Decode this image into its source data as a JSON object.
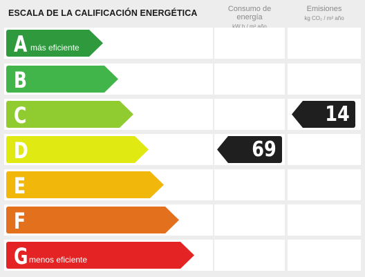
{
  "title": "ESCALA DE LA CALIFICACIÓN ENERGÉTICA",
  "columns": {
    "consumo": {
      "label": "Consumo de energía",
      "unit": "kW h / m² año"
    },
    "emisiones": {
      "label": "Emisiones",
      "unit": "kg CO₂ / m² año"
    }
  },
  "ratings": [
    {
      "letter": "A",
      "label": "más eficiente",
      "color": "#2e9a3d"
    },
    {
      "letter": "B",
      "label": "",
      "color": "#41b54a"
    },
    {
      "letter": "C",
      "label": "",
      "color": "#90cb30"
    },
    {
      "letter": "D",
      "label": "",
      "color": "#e0ea12"
    },
    {
      "letter": "E",
      "label": "",
      "color": "#f1b70a"
    },
    {
      "letter": "F",
      "label": "",
      "color": "#e3701c"
    },
    {
      "letter": "G",
      "label": "menos eficiente",
      "color": "#e42324"
    }
  ],
  "consumo_value": {
    "rating": "D",
    "value": "69"
  },
  "emisiones_value": {
    "rating": "C",
    "value": "14"
  }
}
